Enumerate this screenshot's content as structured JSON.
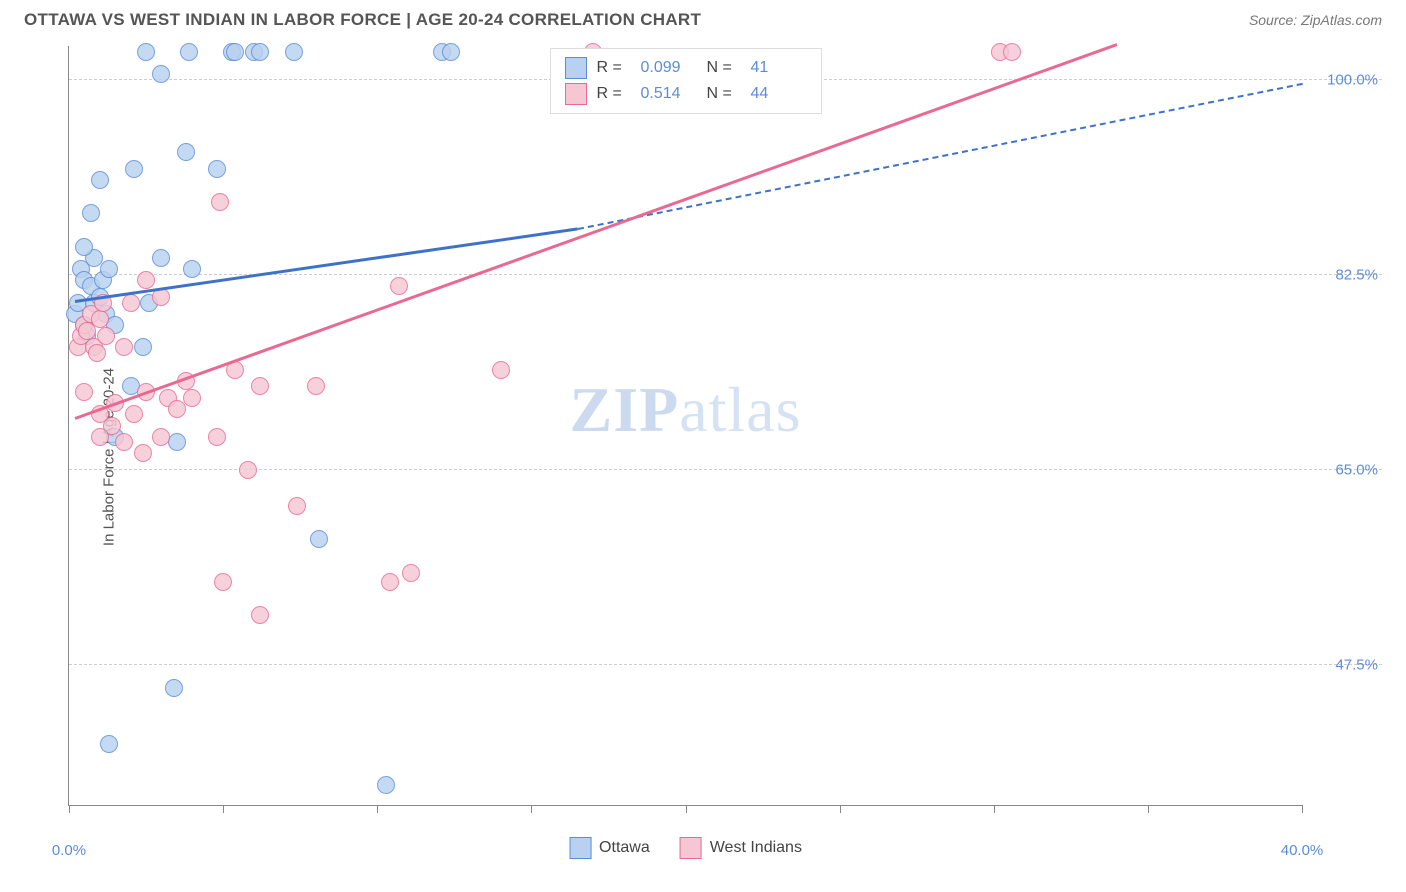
{
  "header": {
    "title": "OTTAWA VS WEST INDIAN IN LABOR FORCE | AGE 20-24 CORRELATION CHART",
    "source": "Source: ZipAtlas.com"
  },
  "chart": {
    "type": "scatter",
    "y_axis_label": "In Labor Force | Age 20-24",
    "xlim": [
      0,
      40
    ],
    "ylim": [
      35,
      103
    ],
    "x_ticks": [
      0,
      5,
      10,
      15,
      20,
      25,
      30,
      35,
      40
    ],
    "x_tick_labels": {
      "0": "0.0%",
      "40": "40.0%"
    },
    "y_gridlines": [
      47.5,
      65.0,
      82.5,
      100.0
    ],
    "y_tick_labels": [
      "47.5%",
      "65.0%",
      "82.5%",
      "100.0%"
    ],
    "background_color": "#ffffff",
    "grid_color": "#cccccc",
    "axis_color": "#888888",
    "label_color": "#5b8dd6",
    "title_color": "#555555",
    "title_fontsize": 17,
    "label_fontsize": 15,
    "marker_radius": 9,
    "marker_border_width": 1.2,
    "watermark_text_bold": "ZIP",
    "watermark_text_rest": "atlas",
    "series": [
      {
        "name": "Ottawa",
        "fill_color": "#b8d1f0",
        "stroke_color": "#5b8dd6",
        "R": "0.099",
        "N": "41",
        "trend": {
          "solid": {
            "x1": 0.2,
            "y1": 80.0,
            "x2": 16.5,
            "y2": 86.5
          },
          "dashed": {
            "x1": 16.5,
            "y1": 86.5,
            "x2": 40.0,
            "y2": 99.5
          },
          "width": 3,
          "color": "#3e72c9"
        },
        "points": [
          [
            0.2,
            79
          ],
          [
            0.3,
            80
          ],
          [
            0.4,
            83
          ],
          [
            0.5,
            78
          ],
          [
            0.5,
            82
          ],
          [
            0.6,
            77
          ],
          [
            0.7,
            81.5
          ],
          [
            0.8,
            80
          ],
          [
            0.8,
            84
          ],
          [
            0.5,
            85
          ],
          [
            0.7,
            88
          ],
          [
            1.0,
            80.5
          ],
          [
            1.1,
            82
          ],
          [
            1.2,
            79
          ],
          [
            1.3,
            83
          ],
          [
            1.5,
            78
          ],
          [
            1.0,
            91
          ],
          [
            2.1,
            92
          ],
          [
            2.5,
            102.5
          ],
          [
            3.8,
            93.5
          ],
          [
            3.9,
            102.5
          ],
          [
            4.0,
            83
          ],
          [
            4.8,
            92
          ],
          [
            5.3,
            102.5
          ],
          [
            5.4,
            102.5
          ],
          [
            6.0,
            102.5
          ],
          [
            6.2,
            102.5
          ],
          [
            7.3,
            102.5
          ],
          [
            3.0,
            100.5
          ],
          [
            3.5,
            67.5
          ],
          [
            3.4,
            45.5
          ],
          [
            1.3,
            40.5
          ],
          [
            8.1,
            58.8
          ],
          [
            1.5,
            68
          ],
          [
            2.0,
            72.5
          ],
          [
            2.4,
            76
          ],
          [
            2.6,
            80
          ],
          [
            3.0,
            84
          ],
          [
            10.3,
            36.8
          ],
          [
            12.1,
            102.5
          ],
          [
            12.4,
            102.5
          ]
        ]
      },
      {
        "name": "West Indians",
        "fill_color": "#f5c7d4",
        "stroke_color": "#e86a92",
        "R": "0.514",
        "N": "44",
        "trend": {
          "solid": {
            "x1": 0.2,
            "y1": 69.5,
            "x2": 34.0,
            "y2": 103.0
          },
          "width": 3,
          "color": "#e86a92"
        },
        "points": [
          [
            0.3,
            76
          ],
          [
            0.4,
            77
          ],
          [
            0.5,
            78
          ],
          [
            0.6,
            77.5
          ],
          [
            0.7,
            79
          ],
          [
            0.8,
            76
          ],
          [
            0.9,
            75.5
          ],
          [
            1.0,
            78.5
          ],
          [
            1.2,
            77
          ],
          [
            1.1,
            80
          ],
          [
            0.5,
            72
          ],
          [
            1.0,
            70
          ],
          [
            1.4,
            69
          ],
          [
            1.5,
            71
          ],
          [
            1.8,
            67.5
          ],
          [
            2.1,
            70
          ],
          [
            2.4,
            66.5
          ],
          [
            2.5,
            72
          ],
          [
            3.0,
            68
          ],
          [
            3.2,
            71.5
          ],
          [
            3.5,
            70.5
          ],
          [
            3.8,
            73
          ],
          [
            4.0,
            71.5
          ],
          [
            4.8,
            68
          ],
          [
            4.9,
            89
          ],
          [
            5.4,
            74
          ],
          [
            5.8,
            65
          ],
          [
            6.2,
            72.5
          ],
          [
            7.4,
            61.8
          ],
          [
            8.0,
            72.5
          ],
          [
            2.0,
            80
          ],
          [
            3.0,
            80.5
          ],
          [
            5.0,
            55.0
          ],
          [
            6.2,
            52.0
          ],
          [
            10.7,
            81.5
          ],
          [
            10.4,
            55.0
          ],
          [
            11.1,
            55.8
          ],
          [
            14.0,
            74.0
          ],
          [
            17.0,
            102.5
          ],
          [
            30.2,
            102.5
          ],
          [
            30.6,
            102.5
          ],
          [
            2.5,
            82
          ],
          [
            1.8,
            76
          ],
          [
            1.0,
            68
          ]
        ]
      }
    ],
    "legend_top": {
      "rows": [
        {
          "swatch_fill": "#b8d1f0",
          "swatch_stroke": "#5b8dd6",
          "r_label": "R =",
          "r_val": "0.099",
          "n_label": "N =",
          "n_val": "41"
        },
        {
          "swatch_fill": "#f5c7d4",
          "swatch_stroke": "#e86a92",
          "r_label": "R =",
          "r_val": "0.514",
          "n_label": "N =",
          "n_val": "44"
        }
      ]
    },
    "legend_bottom": [
      {
        "swatch_fill": "#b8d1f0",
        "swatch_stroke": "#5b8dd6",
        "label": "Ottawa"
      },
      {
        "swatch_fill": "#f5c7d4",
        "swatch_stroke": "#e86a92",
        "label": "West Indians"
      }
    ]
  }
}
